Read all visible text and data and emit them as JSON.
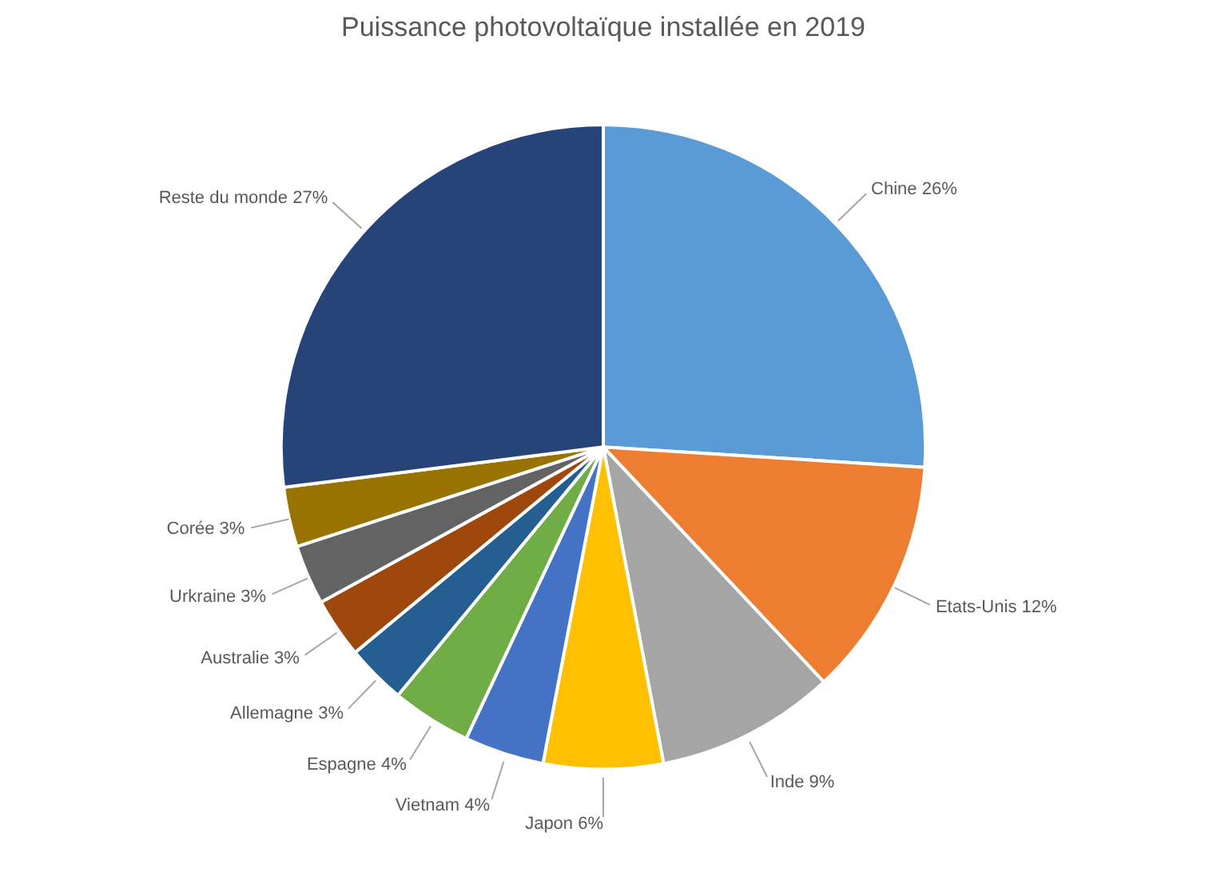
{
  "chart_data": {
    "type": "pie",
    "title": "Puissance photovoltaïque installée en 2019",
    "categories": [
      "Chine",
      "Etats-Unis",
      "Inde",
      "Japon",
      "Vietnam",
      "Espagne",
      "Allemagne",
      "Australie",
      "Urkraine",
      "Corée",
      "Reste du monde"
    ],
    "values": [
      26,
      12,
      9,
      6,
      4,
      4,
      3,
      3,
      3,
      3,
      27
    ],
    "value_labels": [
      "26%",
      "12%",
      "9%",
      "6%",
      "4%",
      "4%",
      "3%",
      "3%",
      "3%",
      "3%",
      "27%"
    ],
    "colors": [
      "#5b9bd5",
      "#ed7d31",
      "#a5a5a5",
      "#ffc000",
      "#4472c4",
      "#70ad47",
      "#255e91",
      "#9e480e",
      "#636363",
      "#997300",
      "#264478"
    ],
    "legend": false
  }
}
